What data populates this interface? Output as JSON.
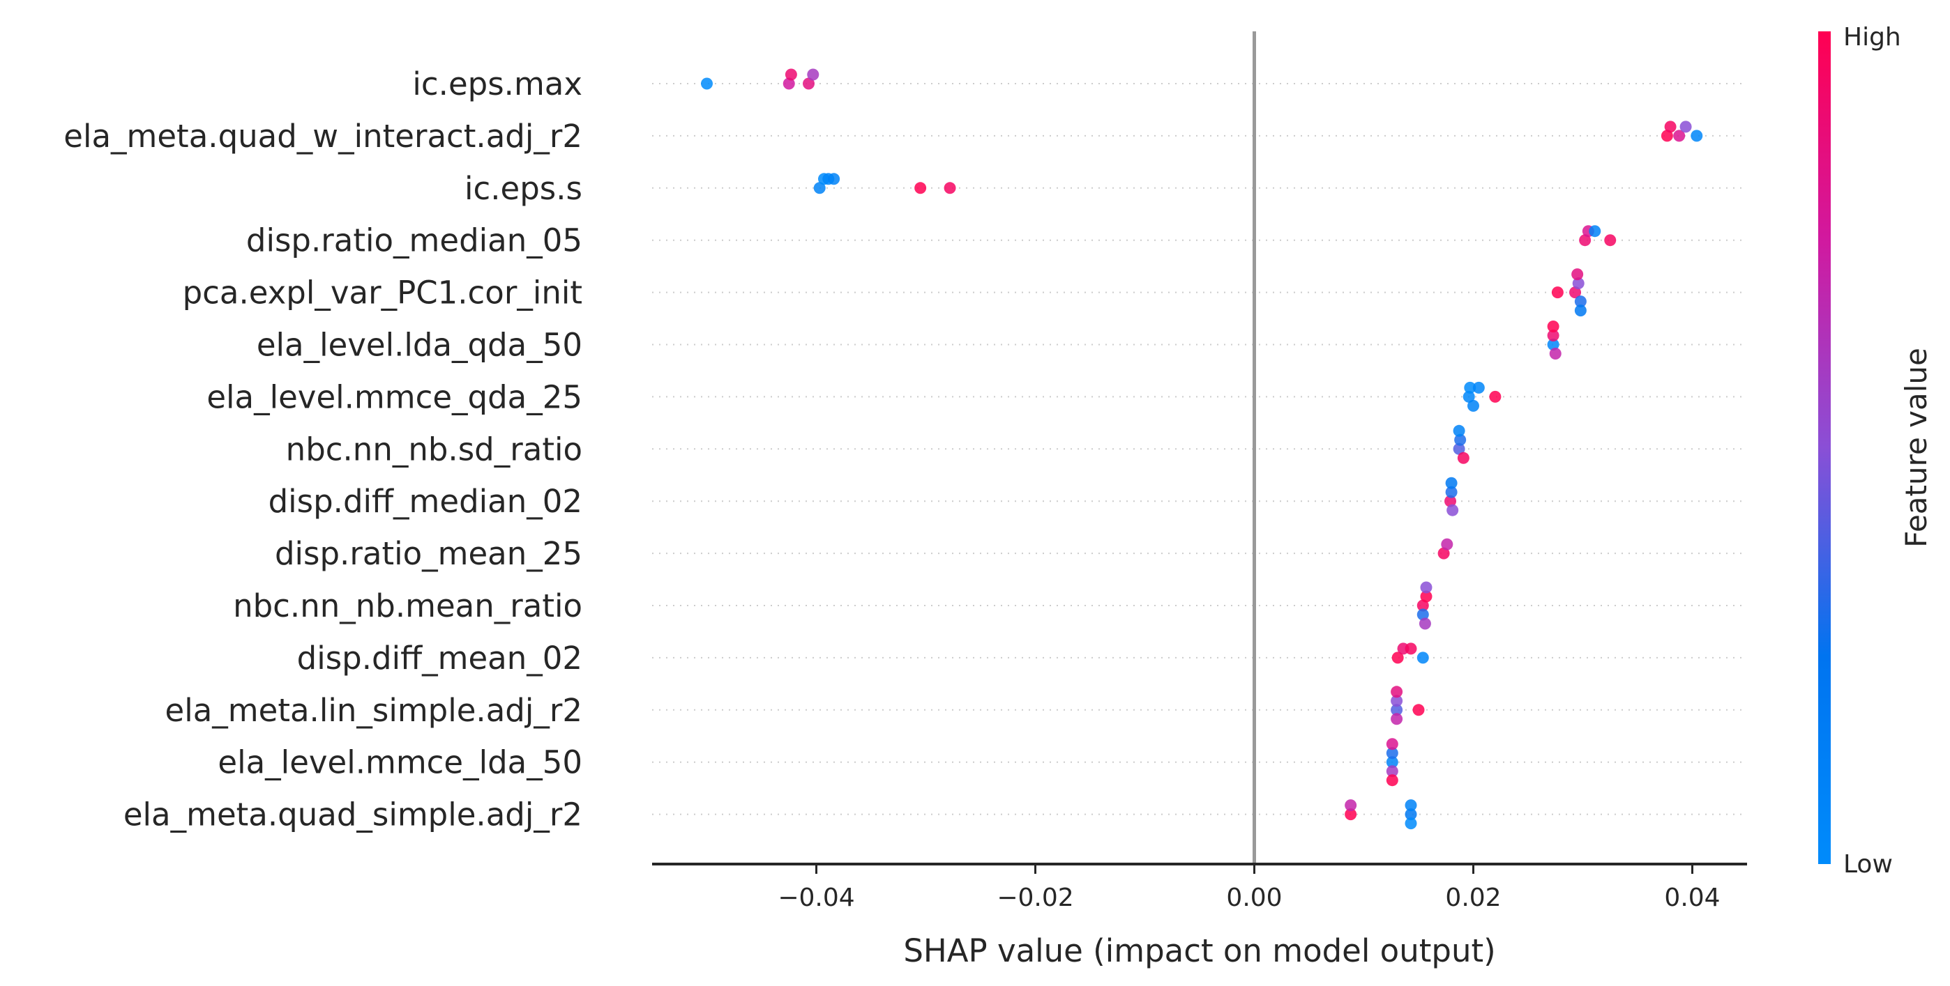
{
  "chart_data": {
    "type": "scatter",
    "subtype": "shap-beeswarm",
    "title": "",
    "xlabel": "SHAP value (impact on model output)",
    "ylabel": "",
    "xlim": [
      -0.055,
      0.045
    ],
    "xticks": [
      -0.04,
      -0.02,
      0.0,
      0.02,
      0.04
    ],
    "xtick_labels": [
      "−0.04",
      "−0.02",
      "0.00",
      "0.02",
      "0.04"
    ],
    "zero_line": 0.0,
    "grid": false,
    "colorbar": {
      "label": "Feature value",
      "high_label": "High",
      "low_label": "Low",
      "low_color": "#008bfb",
      "high_color": "#ff0052",
      "placement": "right"
    },
    "features": [
      {
        "name": "ic.eps.max",
        "points": [
          {
            "shap": -0.05,
            "value": 0.0
          },
          {
            "shap": -0.0425,
            "value": 0.75
          },
          {
            "shap": -0.0423,
            "value": 0.9
          },
          {
            "shap": -0.0407,
            "value": 0.85
          },
          {
            "shap": -0.0403,
            "value": 0.6
          }
        ]
      },
      {
        "name": "ela_meta.quad_w_interact.adj_r2",
        "points": [
          {
            "shap": 0.0377,
            "value": 1.0
          },
          {
            "shap": 0.038,
            "value": 0.95
          },
          {
            "shap": 0.0388,
            "value": 0.8
          },
          {
            "shap": 0.0394,
            "value": 0.5
          },
          {
            "shap": 0.0404,
            "value": 0.05
          }
        ]
      },
      {
        "name": "ic.eps.s",
        "points": [
          {
            "shap": -0.0397,
            "value": 0.1
          },
          {
            "shap": -0.0393,
            "value": 0.0
          },
          {
            "shap": -0.0389,
            "value": 0.05
          },
          {
            "shap": -0.0384,
            "value": 0.1
          },
          {
            "shap": -0.0305,
            "value": 1.0
          },
          {
            "shap": -0.0278,
            "value": 0.95
          }
        ]
      },
      {
        "name": "disp.ratio_median_05",
        "points": [
          {
            "shap": 0.0302,
            "value": 0.9
          },
          {
            "shap": 0.0305,
            "value": 0.8
          },
          {
            "shap": 0.0311,
            "value": 0.1
          },
          {
            "shap": 0.0325,
            "value": 0.95
          }
        ]
      },
      {
        "name": "pca.expl_var_PC1.cor_init",
        "points": [
          {
            "shap": 0.0277,
            "value": 1.0
          },
          {
            "shap": 0.0293,
            "value": 0.9
          },
          {
            "shap": 0.0296,
            "value": 0.5
          },
          {
            "shap": 0.0298,
            "value": 0.3
          },
          {
            "shap": 0.0295,
            "value": 0.85
          },
          {
            "shap": 0.0298,
            "value": 0.2
          }
        ]
      },
      {
        "name": "ela_level.lda_qda_50",
        "points": [
          {
            "shap": 0.0273,
            "value": 0.05
          },
          {
            "shap": 0.0273,
            "value": 0.9
          },
          {
            "shap": 0.0275,
            "value": 0.7
          },
          {
            "shap": 0.0273,
            "value": 1.0
          }
        ]
      },
      {
        "name": "ela_level.mmce_qda_25",
        "points": [
          {
            "shap": 0.0196,
            "value": 0.05
          },
          {
            "shap": 0.0197,
            "value": 0.0
          },
          {
            "shap": 0.02,
            "value": 0.1
          },
          {
            "shap": 0.0205,
            "value": 0.05
          },
          {
            "shap": 0.022,
            "value": 1.0
          }
        ]
      },
      {
        "name": "nbc.nn_nb.sd_ratio",
        "points": [
          {
            "shap": 0.0187,
            "value": 0.4
          },
          {
            "shap": 0.0188,
            "value": 0.3
          },
          {
            "shap": 0.0191,
            "value": 0.95
          },
          {
            "shap": 0.0187,
            "value": 0.1
          }
        ]
      },
      {
        "name": "disp.diff_median_02",
        "points": [
          {
            "shap": 0.0179,
            "value": 0.9
          },
          {
            "shap": 0.018,
            "value": 0.3
          },
          {
            "shap": 0.0181,
            "value": 0.5
          },
          {
            "shap": 0.018,
            "value": 0.2
          }
        ]
      },
      {
        "name": "disp.ratio_mean_25",
        "points": [
          {
            "shap": 0.0173,
            "value": 0.95
          },
          {
            "shap": 0.0176,
            "value": 0.7
          }
        ]
      },
      {
        "name": "nbc.nn_nb.mean_ratio",
        "points": [
          {
            "shap": 0.0154,
            "value": 0.95
          },
          {
            "shap": 0.0157,
            "value": 1.0
          },
          {
            "shap": 0.0154,
            "value": 0.3
          },
          {
            "shap": 0.0157,
            "value": 0.5
          },
          {
            "shap": 0.0156,
            "value": 0.6
          }
        ]
      },
      {
        "name": "disp.diff_mean_02",
        "points": [
          {
            "shap": 0.0131,
            "value": 1.0
          },
          {
            "shap": 0.0136,
            "value": 0.9
          },
          {
            "shap": 0.0143,
            "value": 0.95
          },
          {
            "shap": 0.0154,
            "value": 0.05
          }
        ]
      },
      {
        "name": "ela_meta.lin_simple.adj_r2",
        "points": [
          {
            "shap": 0.013,
            "value": 0.4
          },
          {
            "shap": 0.013,
            "value": 0.5
          },
          {
            "shap": 0.013,
            "value": 0.7
          },
          {
            "shap": 0.013,
            "value": 0.85
          },
          {
            "shap": 0.015,
            "value": 1.0
          }
        ]
      },
      {
        "name": "ela_level.mmce_lda_50",
        "points": [
          {
            "shap": 0.0126,
            "value": 0.1
          },
          {
            "shap": 0.0126,
            "value": 0.3
          },
          {
            "shap": 0.0126,
            "value": 0.6
          },
          {
            "shap": 0.0126,
            "value": 0.8
          },
          {
            "shap": 0.0126,
            "value": 1.0
          }
        ]
      },
      {
        "name": "ela_meta.quad_simple.adj_r2",
        "points": [
          {
            "shap": 0.0088,
            "value": 1.0
          },
          {
            "shap": 0.0088,
            "value": 0.7
          },
          {
            "shap": 0.0143,
            "value": 0.2
          },
          {
            "shap": 0.0143,
            "value": 0.1
          },
          {
            "shap": 0.0143,
            "value": 0.0
          }
        ]
      }
    ]
  }
}
